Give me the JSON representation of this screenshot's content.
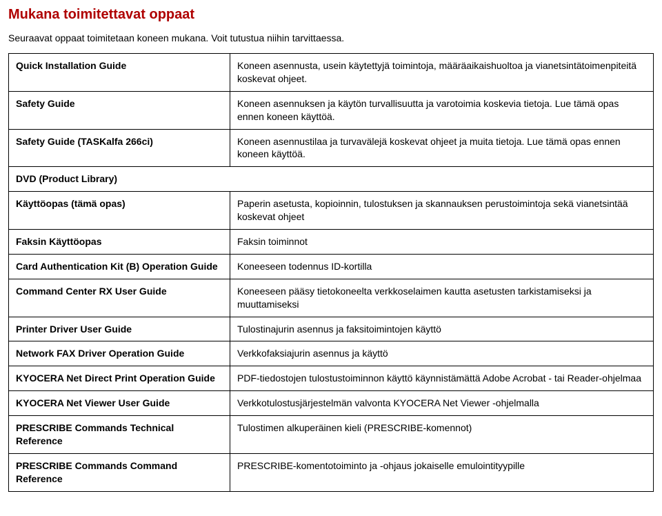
{
  "title": "Mukana toimitettavat oppaat",
  "intro": "Seuraavat oppaat toimitetaan koneen mukana. Voit tutustua niihin tarvittaessa.",
  "section1": [
    {
      "label": "Quick Installation Guide",
      "desc": "Koneen asennusta, usein käytettyjä toimintoja, määräaikaishuoltoa ja vianetsintätoimenpiteitä koskevat ohjeet."
    },
    {
      "label": "Safety Guide",
      "desc": "Koneen asennuksen ja käytön turvallisuutta ja varotoimia koskevia tietoja. Lue tämä opas ennen koneen käyttöä."
    },
    {
      "label": "Safety Guide (TASKalfa 266ci)",
      "desc": "Koneen asennustilaa ja turvavälejä koskevat ohjeet ja muita tietoja. Lue tämä opas ennen koneen käyttöä."
    }
  ],
  "section2_title": "DVD (Product Library)",
  "section2": [
    {
      "label": "Käyttöopas (tämä opas)",
      "desc": "Paperin asetusta, kopioinnin, tulostuksen ja skannauksen perustoimintoja sekä vianetsintää koskevat ohjeet"
    },
    {
      "label": "Faksin Käyttöopas",
      "desc": "Faksin toiminnot"
    },
    {
      "label": "Card Authentication Kit (B) Operation Guide",
      "desc": "Koneeseen todennus ID-kortilla"
    },
    {
      "label": "Command Center RX User Guide",
      "desc": "Koneeseen pääsy tietokoneelta verkkoselaimen kautta asetusten tarkistamiseksi ja muuttamiseksi"
    },
    {
      "label": "Printer Driver User Guide",
      "desc": "Tulostinajurin asennus ja faksitoimintojen käyttö"
    },
    {
      "label": "Network FAX Driver Operation Guide",
      "desc": "Verkkofaksiajurin asennus ja käyttö"
    },
    {
      "label": "KYOCERA Net Direct Print Operation Guide",
      "desc": "PDF-tiedostojen tulostustoiminnon käyttö käynnistämättä Adobe Acrobat - tai Reader-ohjelmaa"
    },
    {
      "label": "KYOCERA Net Viewer User Guide",
      "desc": "Verkkotulostusjärjestelmän valvonta KYOCERA Net Viewer -ohjelmalla"
    },
    {
      "label": "PRESCRIBE Commands Technical Reference",
      "desc": "Tulostimen alkuperäinen kieli (PRESCRIBE-komennot)"
    },
    {
      "label": "PRESCRIBE Commands Command Reference",
      "desc": "PRESCRIBE-komentotoiminto ja -ohjaus jokaiselle emulointityypille"
    }
  ]
}
